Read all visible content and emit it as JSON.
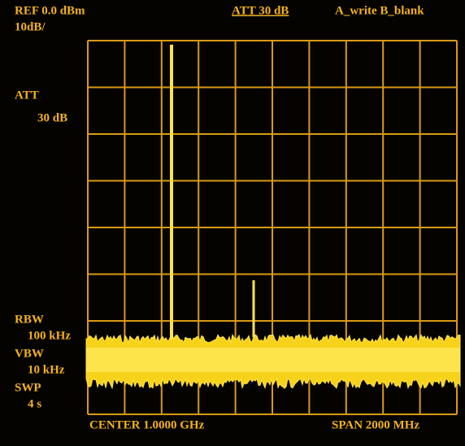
{
  "screen": {
    "ref_level": "REF 0.0 dBm",
    "scale": "10dB/",
    "top_attenuation": "ATT 30 dB",
    "trace_mode": "A_write B_blank",
    "left_attenuation_label": "ATT",
    "left_attenuation_value": "30 dB",
    "rbw_label": "RBW",
    "rbw_value": "100 kHz",
    "vbw_label": "VBW",
    "vbw_value": "10 kHz",
    "sweep_label": "SWP",
    "sweep_value": "4 s",
    "center": "CENTER 1.0000 GHz",
    "span": "SPAN 2000 MHz"
  }
}
